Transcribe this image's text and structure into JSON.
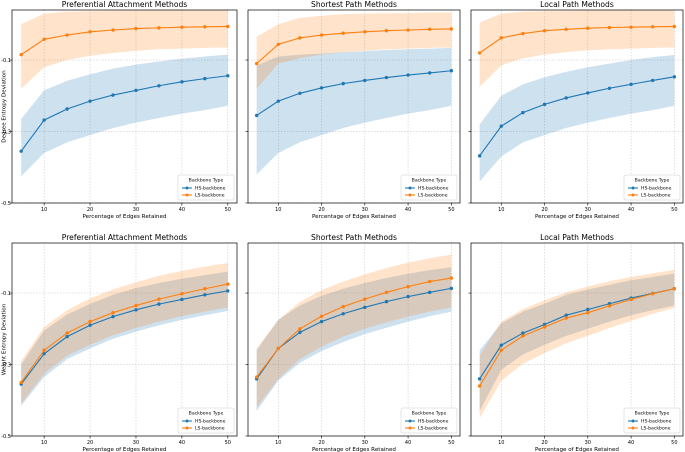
{
  "colors": {
    "hs": "#1f77b4",
    "ls": "#ff7f0e",
    "grid": "#b0b0b0",
    "axis": "#000000"
  },
  "chart_data": [
    {
      "type": "line",
      "title": "Preferential Attachment Methods",
      "xlabel": "Percentage of Edges Retained",
      "ylabel": "Degree Entropy Deviation",
      "xlim": [
        3,
        52
      ],
      "ylim": [
        -0.5,
        0.04
      ],
      "xticks": [
        10,
        20,
        30,
        40,
        50
      ],
      "xtick_labels": [
        "10",
        "20",
        "30",
        "40",
        "50"
      ],
      "yticks": [
        -0.1,
        -0.3,
        -0.5
      ],
      "ytick_labels": [
        "-0.1",
        "-0.3",
        "-0.5"
      ],
      "x": [
        5,
        10,
        15,
        20,
        25,
        30,
        35,
        40,
        45,
        50
      ],
      "legend": {
        "title": "Backbone Type",
        "position": "lower-right"
      },
      "series": [
        {
          "name": "HS-backbone",
          "color": "#1f77b4",
          "values": [
            -0.355,
            -0.268,
            -0.237,
            -0.215,
            -0.198,
            -0.185,
            -0.172,
            -0.161,
            -0.152,
            -0.144
          ],
          "lower": [
            -0.425,
            -0.36,
            -0.33,
            -0.31,
            -0.29,
            -0.275,
            -0.262,
            -0.25,
            -0.24,
            -0.228
          ],
          "upper": [
            -0.265,
            -0.185,
            -0.158,
            -0.14,
            -0.124,
            -0.113,
            -0.104,
            -0.096,
            -0.09,
            -0.085
          ]
        },
        {
          "name": "LS-backbone",
          "color": "#ff7f0e",
          "values": [
            -0.085,
            -0.042,
            -0.03,
            -0.021,
            -0.016,
            -0.012,
            -0.01,
            -0.008,
            -0.007,
            -0.006
          ],
          "lower": [
            -0.18,
            -0.12,
            -0.1,
            -0.088,
            -0.08,
            -0.074,
            -0.07,
            -0.068,
            -0.066,
            -0.065
          ],
          "upper": [
            0.0,
            0.03,
            0.035,
            0.037,
            0.038,
            0.039,
            0.039,
            0.04,
            0.04,
            0.04
          ]
        }
      ]
    },
    {
      "type": "line",
      "title": "Shortest Path Methods",
      "xlabel": "Percentage of Edges Retained",
      "ylabel": "",
      "xlim": [
        3,
        52
      ],
      "ylim": [
        -0.5,
        0.04
      ],
      "xticks": [
        10,
        20,
        30,
        40,
        50
      ],
      "xtick_labels": [
        "10",
        "20",
        "30",
        "40",
        "50"
      ],
      "yticks": [
        -0.1,
        -0.3,
        -0.5
      ],
      "ytick_labels": [
        "",
        "",
        ""
      ],
      "x": [
        5,
        10,
        15,
        20,
        25,
        30,
        35,
        40,
        45,
        50
      ],
      "legend": {
        "title": "Backbone Type",
        "position": "lower-right"
      },
      "series": [
        {
          "name": "HS-backbone",
          "color": "#1f77b4",
          "values": [
            -0.255,
            -0.215,
            -0.193,
            -0.178,
            -0.166,
            -0.157,
            -0.149,
            -0.142,
            -0.136,
            -0.13
          ],
          "lower": [
            -0.42,
            -0.36,
            -0.33,
            -0.31,
            -0.29,
            -0.275,
            -0.262,
            -0.25,
            -0.24,
            -0.228
          ],
          "upper": [
            -0.115,
            -0.09,
            -0.085,
            -0.082,
            -0.078,
            -0.075,
            -0.072,
            -0.07,
            -0.068,
            -0.066
          ]
        },
        {
          "name": "LS-backbone",
          "color": "#ff7f0e",
          "values": [
            -0.11,
            -0.056,
            -0.038,
            -0.03,
            -0.025,
            -0.021,
            -0.018,
            -0.016,
            -0.014,
            -0.013
          ],
          "lower": [
            -0.18,
            -0.11,
            -0.095,
            -0.085,
            -0.078,
            -0.074,
            -0.07,
            -0.068,
            -0.066,
            -0.065
          ],
          "upper": [
            -0.035,
            0.0,
            0.018,
            0.024,
            0.028,
            0.03,
            0.031,
            0.032,
            0.033,
            0.033
          ]
        }
      ]
    },
    {
      "type": "line",
      "title": "Local Path Methods",
      "xlabel": "Percentage of Edges Retained",
      "ylabel": "",
      "xlim": [
        3,
        52
      ],
      "ylim": [
        -0.5,
        0.04
      ],
      "xticks": [
        10,
        20,
        30,
        40,
        50
      ],
      "xtick_labels": [
        "10",
        "20",
        "30",
        "40",
        "50"
      ],
      "yticks": [
        -0.1,
        -0.3,
        -0.5
      ],
      "ytick_labels": [
        "",
        "",
        ""
      ],
      "x": [
        5,
        10,
        15,
        20,
        25,
        30,
        35,
        40,
        45,
        50
      ],
      "legend": {
        "title": "Backbone Type",
        "position": "lower-right"
      },
      "series": [
        {
          "name": "HS-backbone",
          "color": "#1f77b4",
          "values": [
            -0.368,
            -0.285,
            -0.247,
            -0.224,
            -0.206,
            -0.192,
            -0.179,
            -0.168,
            -0.157,
            -0.147
          ],
          "lower": [
            -0.44,
            -0.37,
            -0.33,
            -0.31,
            -0.29,
            -0.275,
            -0.262,
            -0.25,
            -0.24,
            -0.228
          ],
          "upper": [
            -0.28,
            -0.2,
            -0.168,
            -0.148,
            -0.133,
            -0.12,
            -0.11,
            -0.1,
            -0.092,
            -0.086
          ]
        },
        {
          "name": "LS-backbone",
          "color": "#ff7f0e",
          "values": [
            -0.08,
            -0.038,
            -0.026,
            -0.018,
            -0.014,
            -0.011,
            -0.009,
            -0.008,
            -0.007,
            -0.006
          ],
          "lower": [
            -0.175,
            -0.115,
            -0.095,
            -0.085,
            -0.078,
            -0.073,
            -0.07,
            -0.068,
            -0.066,
            -0.065
          ],
          "upper": [
            0.005,
            0.03,
            0.035,
            0.037,
            0.038,
            0.039,
            0.04,
            0.04,
            0.04,
            0.04
          ]
        }
      ]
    },
    {
      "type": "line",
      "title": "Preferential Attachment Methods",
      "xlabel": "Percentage of Edges Retained",
      "ylabel": "Weight Entropy Deviation",
      "xlim": [
        3,
        52
      ],
      "ylim": [
        -0.5,
        0.04
      ],
      "xticks": [
        10,
        20,
        30,
        40,
        50
      ],
      "xtick_labels": [
        "10",
        "20",
        "30",
        "40",
        "50"
      ],
      "yticks": [
        -0.1,
        -0.3,
        -0.5
      ],
      "ytick_labels": [
        "-0.1",
        "-0.3",
        "-0.5"
      ],
      "x": [
        5,
        10,
        15,
        20,
        25,
        30,
        35,
        40,
        45,
        50
      ],
      "legend": {
        "title": "Backbone Type",
        "position": "lower-right"
      },
      "series": [
        {
          "name": "HS-backbone",
          "color": "#1f77b4",
          "values": [
            -0.355,
            -0.27,
            -0.222,
            -0.19,
            -0.166,
            -0.147,
            -0.131,
            -0.118,
            -0.105,
            -0.094
          ],
          "lower": [
            -0.415,
            -0.335,
            -0.285,
            -0.255,
            -0.228,
            -0.208,
            -0.19,
            -0.175,
            -0.162,
            -0.15
          ],
          "upper": [
            -0.3,
            -0.205,
            -0.16,
            -0.13,
            -0.105,
            -0.086,
            -0.072,
            -0.06,
            -0.05,
            -0.04
          ]
        },
        {
          "name": "LS-backbone",
          "color": "#ff7f0e",
          "values": [
            -0.35,
            -0.26,
            -0.212,
            -0.18,
            -0.155,
            -0.135,
            -0.117,
            -0.102,
            -0.088,
            -0.075
          ],
          "lower": [
            -0.41,
            -0.325,
            -0.275,
            -0.245,
            -0.218,
            -0.198,
            -0.18,
            -0.165,
            -0.152,
            -0.14
          ],
          "upper": [
            -0.29,
            -0.195,
            -0.148,
            -0.115,
            -0.09,
            -0.07,
            -0.052,
            -0.038,
            -0.026,
            -0.016
          ]
        }
      ]
    },
    {
      "type": "line",
      "title": "Shortest Path Methods",
      "xlabel": "Percentage of Edges Retained",
      "ylabel": "",
      "xlim": [
        3,
        52
      ],
      "ylim": [
        -0.5,
        0.04
      ],
      "xticks": [
        10,
        20,
        30,
        40,
        50
      ],
      "xtick_labels": [
        "10",
        "20",
        "30",
        "40",
        "50"
      ],
      "yticks": [
        -0.1,
        -0.3,
        -0.5
      ],
      "ytick_labels": [
        "",
        "",
        ""
      ],
      "x": [
        5,
        10,
        15,
        20,
        25,
        30,
        35,
        40,
        45,
        50
      ],
      "legend": {
        "title": "Backbone Type",
        "position": "lower-right"
      },
      "series": [
        {
          "name": "HS-backbone",
          "color": "#1f77b4",
          "values": [
            -0.34,
            -0.255,
            -0.21,
            -0.18,
            -0.158,
            -0.14,
            -0.124,
            -0.11,
            -0.098,
            -0.087
          ],
          "lower": [
            -0.43,
            -0.345,
            -0.295,
            -0.262,
            -0.237,
            -0.215,
            -0.197,
            -0.18,
            -0.165,
            -0.152
          ],
          "upper": [
            -0.26,
            -0.175,
            -0.135,
            -0.108,
            -0.088,
            -0.072,
            -0.058,
            -0.046,
            -0.036,
            -0.028
          ]
        },
        {
          "name": "LS-backbone",
          "color": "#ff7f0e",
          "values": [
            -0.335,
            -0.255,
            -0.2,
            -0.165,
            -0.138,
            -0.117,
            -0.098,
            -0.082,
            -0.068,
            -0.058
          ],
          "lower": [
            -0.42,
            -0.34,
            -0.285,
            -0.25,
            -0.222,
            -0.2,
            -0.182,
            -0.166,
            -0.152,
            -0.14
          ],
          "upper": [
            -0.255,
            -0.175,
            -0.125,
            -0.092,
            -0.068,
            -0.048,
            -0.03,
            -0.015,
            -0.003,
            0.008
          ]
        }
      ]
    },
    {
      "type": "line",
      "title": "Local Path Methods",
      "xlabel": "Percentage of Edges Retained",
      "ylabel": "",
      "xlim": [
        3,
        52
      ],
      "ylim": [
        -0.5,
        0.04
      ],
      "xticks": [
        10,
        20,
        30,
        40,
        50
      ],
      "xtick_labels": [
        "10",
        "20",
        "30",
        "40",
        "50"
      ],
      "yticks": [
        -0.1,
        -0.3,
        -0.5
      ],
      "ytick_labels": [
        "",
        "",
        ""
      ],
      "x": [
        5,
        10,
        15,
        20,
        25,
        30,
        35,
        40,
        45,
        50
      ],
      "legend": {
        "title": "Backbone Type",
        "position": "lower-right"
      },
      "series": [
        {
          "name": "HS-backbone",
          "color": "#1f77b4",
          "values": [
            -0.34,
            -0.246,
            -0.212,
            -0.188,
            -0.162,
            -0.146,
            -0.13,
            -0.114,
            -0.101,
            -0.088
          ],
          "lower": [
            -0.43,
            -0.315,
            -0.272,
            -0.245,
            -0.22,
            -0.2,
            -0.18,
            -0.162,
            -0.148,
            -0.135
          ],
          "upper": [
            -0.26,
            -0.185,
            -0.152,
            -0.13,
            -0.105,
            -0.09,
            -0.077,
            -0.064,
            -0.055,
            -0.045
          ]
        },
        {
          "name": "LS-backbone",
          "color": "#ff7f0e",
          "values": [
            -0.36,
            -0.26,
            -0.22,
            -0.195,
            -0.17,
            -0.155,
            -0.136,
            -0.118,
            -0.102,
            -0.088
          ],
          "lower": [
            -0.45,
            -0.345,
            -0.298,
            -0.268,
            -0.24,
            -0.22,
            -0.198,
            -0.178,
            -0.158,
            -0.142
          ],
          "upper": [
            -0.275,
            -0.18,
            -0.145,
            -0.12,
            -0.098,
            -0.082,
            -0.067,
            -0.055,
            -0.045,
            -0.035
          ]
        }
      ]
    }
  ]
}
